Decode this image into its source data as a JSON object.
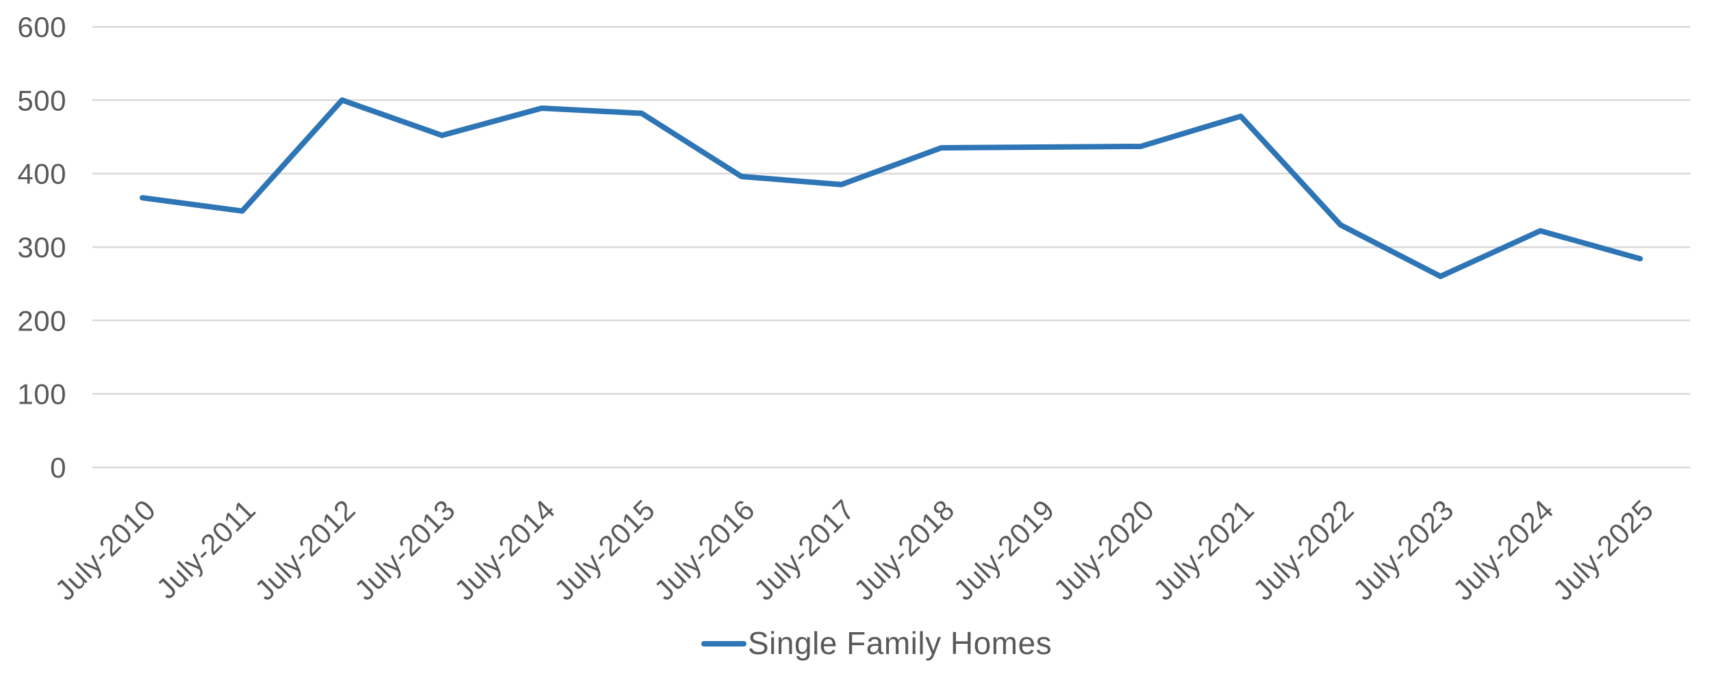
{
  "chart_data": {
    "type": "line",
    "title": "",
    "categories": [
      "July-2010",
      "July-2011",
      "July-2012",
      "July-2013",
      "July-2014",
      "July-2015",
      "July-2016",
      "July-2017",
      "July-2018",
      "July-2019",
      "July-2020",
      "July-2021",
      "July-2022",
      "July-2023",
      "July-2024",
      "July-2025"
    ],
    "series": [
      {
        "name": "Single Family Homes",
        "color": "#2E75B6",
        "values": [
          367,
          349,
          500,
          452,
          489,
          482,
          396,
          385,
          435,
          436,
          437,
          478,
          330,
          260,
          322,
          284
        ]
      }
    ],
    "y_ticks": [
      0,
      100,
      200,
      300,
      400,
      500,
      600
    ],
    "ylim": [
      0,
      600
    ],
    "xlabel": "",
    "ylabel": "",
    "grid": "horizontal",
    "x_tick_rotation_deg": -45,
    "legend_position": "bottom-center",
    "colors": {
      "axis_text": "#595959",
      "gridline": "#D9D9D9"
    }
  }
}
